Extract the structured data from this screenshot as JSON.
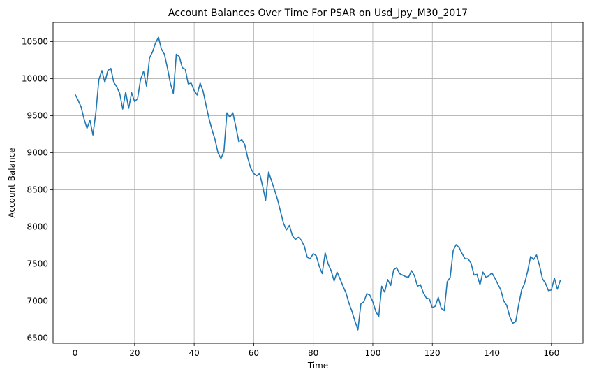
{
  "chart_data": {
    "type": "line",
    "title": "Account Balances Over Time For PSAR on Usd_Jpy_M30_2017",
    "xlabel": "Time",
    "ylabel": "Account Balance",
    "xlim": [
      -7.4,
      170.6
    ],
    "ylim": [
      6430,
      10760
    ],
    "xticks": [
      0,
      20,
      40,
      60,
      80,
      100,
      120,
      140,
      160
    ],
    "yticks": [
      6500,
      7000,
      7500,
      8000,
      8500,
      9000,
      9500,
      10000,
      10500
    ],
    "grid": true,
    "line_color": "#1f77b4",
    "series": [
      {
        "values": [
          9790,
          9710,
          9620,
          9460,
          9330,
          9440,
          9240,
          9550,
          9990,
          10110,
          9950,
          10110,
          10140,
          9950,
          9890,
          9800,
          9590,
          9820,
          9600,
          9810,
          9690,
          9730,
          9990,
          10100,
          9900,
          10280,
          10360,
          10480,
          10560,
          10400,
          10330,
          10150,
          9940,
          9800,
          10330,
          10300,
          10150,
          10130,
          9930,
          9940,
          9840,
          9780,
          9940,
          9830,
          9640,
          9460,
          9310,
          9180,
          9000,
          8920,
          9020,
          9540,
          9480,
          9540,
          9350,
          9150,
          9180,
          9110,
          8930,
          8790,
          8720,
          8690,
          8720,
          8550,
          8360,
          8740,
          8620,
          8500,
          8370,
          8210,
          8050,
          7960,
          8020,
          7880,
          7830,
          7860,
          7820,
          7740,
          7590,
          7570,
          7640,
          7610,
          7470,
          7370,
          7650,
          7500,
          7410,
          7270,
          7390,
          7300,
          7200,
          7110,
          6970,
          6860,
          6730,
          6610,
          6960,
          6990,
          7100,
          7080,
          6990,
          6860,
          6790,
          7200,
          7120,
          7290,
          7210,
          7420,
          7450,
          7370,
          7350,
          7330,
          7320,
          7410,
          7340,
          7200,
          7220,
          7110,
          7040,
          7030,
          6910,
          6930,
          7050,
          6900,
          6870,
          7260,
          7320,
          7680,
          7760,
          7720,
          7640,
          7570,
          7570,
          7510,
          7350,
          7360,
          7220,
          7390,
          7320,
          7340,
          7380,
          7310,
          7230,
          7150,
          7000,
          6940,
          6790,
          6700,
          6720,
          6950,
          7150,
          7240,
          7400,
          7600,
          7560,
          7620,
          7480,
          7300,
          7240,
          7140,
          7150,
          7310,
          7160,
          7280
        ]
      }
    ]
  }
}
